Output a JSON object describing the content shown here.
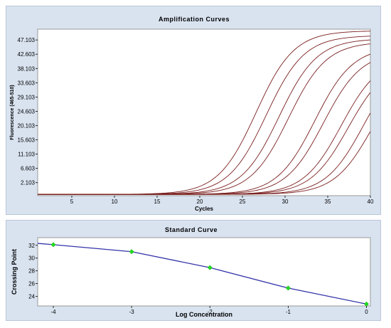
{
  "chart_data": [
    {
      "type": "line",
      "title": "Amplification Curves",
      "xlabel": "Cycles",
      "ylabel": "Fluorescence (465-510)",
      "xlim": [
        1,
        40
      ],
      "ylim": [
        -2.0,
        50.5
      ],
      "xticks": [
        5,
        10,
        15,
        20,
        25,
        30,
        35,
        40
      ],
      "yticks": [
        2.103,
        6.603,
        11.103,
        15.603,
        20.103,
        24.603,
        29.103,
        33.603,
        38.103,
        42.603,
        47.103
      ],
      "ytick_labels": [
        "2.103",
        "6.603",
        "11.103",
        "15.603",
        "20.103",
        "24.603",
        "29.103",
        "33.603",
        "38.103",
        "42.603",
        "47.103"
      ],
      "grid": false,
      "baseline": -1.6,
      "line_color": "#7a1f1f",
      "series": [
        {
          "midpoint": 26.6,
          "plateau": 50.0,
          "slope": 0.45
        },
        {
          "midpoint": 27.8,
          "plateau": 48.5,
          "slope": 0.45
        },
        {
          "midpoint": 29.3,
          "plateau": 47.5,
          "slope": 0.45
        },
        {
          "midpoint": 30.4,
          "plateau": 46.5,
          "slope": 0.45
        },
        {
          "midpoint": 33.5,
          "plateau": 45.0,
          "slope": 0.45
        },
        {
          "midpoint": 34.5,
          "plateau": 43.5,
          "slope": 0.45
        },
        {
          "midpoint": 36.6,
          "plateau": 42.0,
          "slope": 0.45
        },
        {
          "midpoint": 37.4,
          "plateau": 40.5,
          "slope": 0.45
        },
        {
          "midpoint": 39.2,
          "plateau": 42.0,
          "slope": 0.45
        },
        {
          "midpoint": 40.2,
          "plateau": 40.0,
          "slope": 0.45
        }
      ]
    },
    {
      "type": "scatter",
      "title": "Standard Curve",
      "xlabel": "Log Concentration",
      "ylabel": "Crossing Point",
      "xlim": [
        -4.2,
        0.05
      ],
      "ylim": [
        22.5,
        33.2
      ],
      "xticks": [
        -4,
        -3,
        -2,
        -1,
        0
      ],
      "yticks": [
        24,
        26,
        28,
        30,
        32
      ],
      "grid": false,
      "points": [
        {
          "x": -4,
          "y": 32.1
        },
        {
          "x": -3,
          "y": 31.0
        },
        {
          "x": -2,
          "y": 28.5
        },
        {
          "x": -1,
          "y": 25.3
        },
        {
          "x": 0,
          "y": 22.8
        }
      ],
      "fit_line": [
        {
          "x": -4.2,
          "y": 32.3
        },
        {
          "x": -4.0,
          "y": 32.1
        },
        {
          "x": -3.0,
          "y": 31.0
        },
        {
          "x": -2.0,
          "y": 28.5
        },
        {
          "x": -1.0,
          "y": 25.3
        },
        {
          "x": 0.0,
          "y": 22.8
        }
      ],
      "point_color": "#22dd22",
      "line_color": "#3333aa"
    }
  ]
}
